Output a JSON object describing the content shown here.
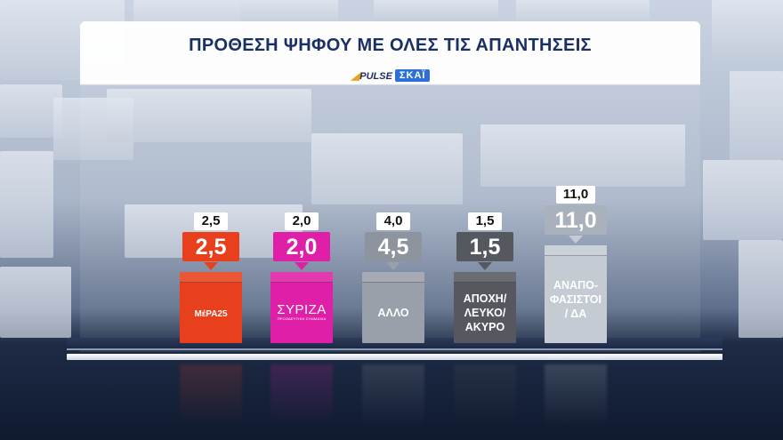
{
  "title": "ΠΡΟΘΕΣΗ ΨΗΦΟΥ ΜΕ ΟΛΕΣ ΤΙΣ ΑΠΑΝΤΗΣΕΙΣ",
  "logos": {
    "pollster": "PULSE",
    "broadcaster": "ΣΚΑΪ"
  },
  "chart_data": {
    "type": "bar",
    "categories": [
      "ΜέΡΑ25",
      "ΣΥΡΙΖΑ",
      "ΑΛΛΟ",
      "ΑΠΟΧΗ/ ΛΕΥΚΟ/ ΑΚΥΡΟ",
      "ΑΝΑΠΟ- ΦΑΣΙΣΤΟΙ / ΔΑ"
    ],
    "series": [
      {
        "values": [
          2.5,
          2.0,
          4.5,
          1.5,
          11.0
        ]
      },
      {
        "values": [
          2.5,
          2.0,
          4.0,
          1.5,
          11.0
        ]
      }
    ],
    "value_labels": [
      "2,5",
      "2,0",
      "4,5",
      "1,5",
      "11,0"
    ],
    "previous_labels": [
      "2,5",
      "2,0",
      "4,0",
      "1,5",
      "11,0"
    ],
    "colors": [
      "#e8401c",
      "#e01fa8",
      "#9aa0a9",
      "#55595f",
      "#c4cbd3"
    ],
    "box_labels": [
      "",
      "",
      "ΑΛΛΟ",
      "ΑΠΟΧΗ/\nΛΕΥΚΟ/\nΑΚΥΡΟ",
      "ΑΝΑΠΟ-\nΦΑΣΙΣΤΟΙ\n/ ΔΑ"
    ],
    "party_logos": {
      "mera25": "ΜέΡΑ25",
      "syriza": "ΣΥΡΙΖΑ",
      "syriza_sub": "ΠΡΟΟΔΕΥΤΙΚΗ ΣΥΜΜΑΧΙΑ"
    }
  }
}
